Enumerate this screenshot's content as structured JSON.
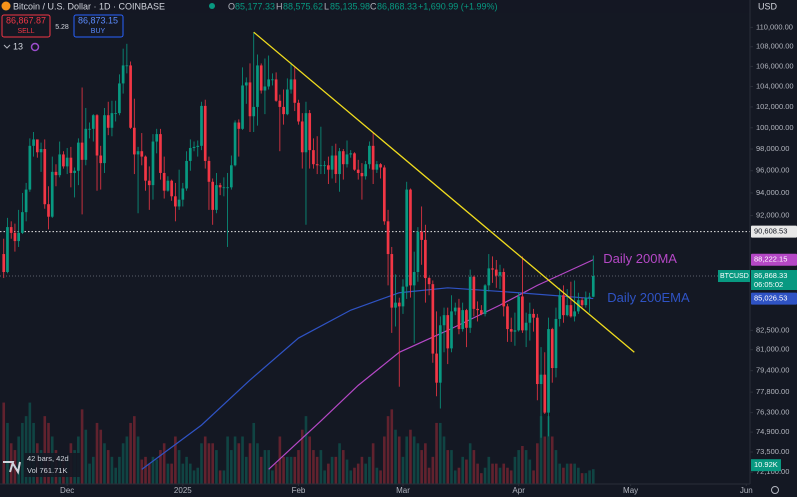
{
  "header": {
    "title": "Bitcoin / U.S. Dollar · 1D · COINBASE",
    "o_key": "O",
    "o": "85,177.33",
    "h_key": "H",
    "h": "88,575.62",
    "l_key": "L",
    "l": "85,135.98",
    "c_key": "C",
    "c": "86,868.33",
    "change": "+1,690.99 (+1.99%)",
    "sell_price": "86,867.87",
    "sell": "SELL",
    "spread": "5.28",
    "buy_price": "86,873.15",
    "buy": "BUY",
    "indicator_count": "13",
    "currency": "USD"
  },
  "chart_data": {
    "type": "candlestick",
    "symbol": "BTCUSD",
    "countdown": "06:05:02",
    "bars_info": "42 bars, 42d",
    "volume_info": "Vol 761.71K",
    "volume_last_label": "10.92K",
    "up_color": "#089981",
    "down_color": "#f23645",
    "log_y": true,
    "grid": false,
    "ylim": [
      71300,
      112900
    ],
    "yticks": [
      {
        "value": 110000,
        "label": "110,000.00"
      },
      {
        "value": 108000,
        "label": "108,000.00"
      },
      {
        "value": 106000,
        "label": "106,000.00"
      },
      {
        "value": 104000,
        "label": "104,000.00"
      },
      {
        "value": 102000,
        "label": "102,000.00"
      },
      {
        "value": 100000,
        "label": "100,000.00"
      },
      {
        "value": 98000,
        "label": "98,000.00"
      },
      {
        "value": 96000,
        "label": "96,000.00"
      },
      {
        "value": 94000,
        "label": "94,000.00"
      },
      {
        "value": 92000,
        "label": "92,000.00"
      },
      {
        "value": 82500,
        "label": "82,500.00"
      },
      {
        "value": 81000,
        "label": "81,000.00"
      },
      {
        "value": 79400,
        "label": "79,400.00"
      },
      {
        "value": 77800,
        "label": "77,800.00"
      },
      {
        "value": 76300,
        "label": "76,300.00"
      },
      {
        "value": 74900,
        "label": "74,900.00"
      },
      {
        "value": 73500,
        "label": "73,500.00"
      },
      {
        "value": 72100,
        "label": "72,100.00"
      }
    ],
    "xlim": [
      -18,
      183
    ],
    "xticks": [
      {
        "value": 0,
        "label": "Dec"
      },
      {
        "value": 31,
        "label": "2025"
      },
      {
        "value": 62,
        "label": "Feb"
      },
      {
        "value": 90,
        "label": "Mar"
      },
      {
        "value": 121,
        "label": "Apr"
      },
      {
        "value": 151,
        "label": "May"
      },
      {
        "value": 182,
        "label": "Jun"
      }
    ],
    "x": [
      -17,
      -16,
      -15,
      -14,
      -13,
      -12,
      -11,
      -10,
      -9,
      -8,
      -7,
      -6,
      -5,
      -4,
      -3,
      -2,
      -1,
      0,
      1,
      2,
      3,
      4,
      5,
      6,
      7,
      8,
      9,
      10,
      11,
      12,
      13,
      14,
      15,
      16,
      17,
      18,
      19,
      20,
      21,
      22,
      23,
      24,
      25,
      26,
      27,
      28,
      29,
      30,
      31,
      32,
      33,
      34,
      35,
      36,
      37,
      38,
      39,
      40,
      41,
      42,
      43,
      44,
      45,
      46,
      47,
      48,
      49,
      50,
      51,
      52,
      53,
      54,
      55,
      56,
      57,
      58,
      59,
      60,
      61,
      62,
      63,
      64,
      65,
      66,
      67,
      68,
      69,
      70,
      71,
      72,
      73,
      74,
      75,
      76,
      77,
      78,
      79,
      80,
      81,
      82,
      83,
      84,
      85,
      86,
      87,
      88,
      89,
      90,
      91,
      92,
      93,
      94,
      95,
      96,
      97,
      98,
      99,
      100,
      101,
      102,
      103,
      104,
      105,
      106,
      107,
      108,
      109,
      110,
      111,
      112,
      113,
      114,
      115,
      116,
      117,
      118,
      119,
      120,
      121,
      122,
      123,
      124,
      125,
      126,
      127,
      128,
      129,
      130,
      131,
      132,
      133,
      134,
      135,
      136,
      137,
      138,
      139,
      140,
      141
    ],
    "open": [
      88700,
      87200,
      91000,
      90500,
      89800,
      90500,
      92300,
      94300,
      98300,
      98900,
      97700,
      98000,
      93000,
      91900,
      95900,
      95600,
      97500,
      96400,
      97200,
      95800,
      96000,
      98600,
      97000,
      99900,
      99900,
      101200,
      97400,
      96700,
      101200,
      100000,
      101400,
      101400,
      104300,
      106100,
      106100,
      100000,
      97500,
      97800,
      97300,
      95100,
      94700,
      98700,
      99400,
      95800,
      94200,
      95100,
      93700,
      92800,
      93400,
      94400,
      96900,
      98100,
      98200,
      98300,
      102100,
      96900,
      95000,
      92500,
      94700,
      94500,
      94500,
      94500,
      96500,
      100500,
      99900,
      104100,
      104400,
      101100,
      102000,
      106100,
      103600,
      104000,
      104700,
      104700,
      102600,
      102000,
      101300,
      103700,
      104700,
      102400,
      100600,
      97700,
      101400,
      97900,
      96600,
      96500,
      96500,
      96500,
      96100,
      97400,
      95700,
      97800,
      96600,
      97500,
      97600,
      96100,
      95800,
      95500,
      96600,
      98300,
      96100,
      96600,
      96300,
      91500,
      88700,
      84300,
      84700,
      84400,
      86000,
      94300,
      86100,
      87200,
      90600,
      89900,
      86700,
      86200,
      80700,
      78500,
      82900,
      83700,
      81100,
      84000,
      84300,
      82600,
      84100,
      82700,
      86800,
      84200,
      84100,
      83800,
      86100,
      87500,
      87400,
      86900,
      87200,
      84400,
      82600,
      82400,
      82500,
      85200,
      82500,
      83100,
      83800,
      83500,
      78400,
      79100,
      76300,
      82600,
      79600,
      83400,
      85300,
      83700,
      84500,
      83600,
      84000,
      84900,
      84500,
      85100,
      85177.33
    ],
    "high": [
      90000,
      91800,
      91500,
      91300,
      92500,
      94000,
      94900,
      99000,
      99600,
      98700,
      98600,
      98900,
      94600,
      97300,
      96600,
      98700,
      97800,
      98100,
      98200,
      96300,
      99000,
      103900,
      101900,
      100500,
      101300,
      101300,
      98300,
      101900,
      102500,
      102600,
      102600,
      105200,
      107800,
      108300,
      106500,
      102800,
      98200,
      99500,
      97400,
      96400,
      99400,
      99900,
      99900,
      97300,
      95500,
      95200,
      94900,
      96100,
      94900,
      97800,
      98900,
      98700,
      98800,
      102500,
      102700,
      97300,
      95300,
      95800,
      94900,
      95400,
      95800,
      97400,
      100700,
      100800,
      105900,
      104900,
      106300,
      109500,
      107200,
      106300,
      106800,
      107100,
      105300,
      105400,
      103200,
      103700,
      104800,
      106400,
      106000,
      102700,
      101400,
      102500,
      101700,
      99000,
      99200,
      100100,
      96900,
      97300,
      98300,
      98500,
      98100,
      98000,
      98800,
      97900,
      97700,
      97000,
      96700,
      96900,
      98700,
      99500,
      96900,
      96700,
      96500,
      92500,
      89300,
      87000,
      85100,
      86600,
      95000,
      94400,
      88900,
      91000,
      92800,
      91200,
      86800,
      86500,
      84000,
      83600,
      84300,
      84300,
      85300,
      84700,
      85000,
      84700,
      84200,
      87400,
      86900,
      84800,
      84500,
      86200,
      88700,
      88500,
      88200,
      87800,
      87500,
      84600,
      83500,
      83900,
      85500,
      88500,
      83900,
      84700,
      84200,
      83800,
      81200,
      80800,
      83500,
      82700,
      84300,
      85900,
      86100,
      85800,
      86400,
      86500,
      85500,
      85100,
      85600,
      85500,
      88575.62
    ],
    "low": [
      86700,
      87100,
      90000,
      88900,
      89300,
      90400,
      91500,
      94100,
      97300,
      97200,
      95900,
      92600,
      90800,
      91800,
      94600,
      95400,
      96200,
      95700,
      94500,
      93600,
      94700,
      92100,
      96500,
      99000,
      98700,
      94200,
      94300,
      95800,
      99300,
      99200,
      100600,
      101200,
      103300,
      105300,
      99900,
      95700,
      92200,
      96500,
      94200,
      92500,
      93400,
      97600,
      95200,
      93500,
      94100,
      93300,
      91500,
      92500,
      92800,
      94200,
      96000,
      97800,
      97300,
      97900,
      96200,
      92500,
      91200,
      92200,
      93800,
      93700,
      89300,
      94300,
      96400,
      97300,
      99800,
      102300,
      99600,
      99600,
      100200,
      103300,
      101300,
      103700,
      104100,
      102500,
      97800,
      100300,
      101200,
      103300,
      101600,
      100300,
      96200,
      91200,
      96200,
      96200,
      95700,
      95700,
      95700,
      94800,
      95300,
      94900,
      94100,
      95200,
      96300,
      97200,
      96000,
      95200,
      93400,
      95200,
      96200,
      94800,
      95800,
      95300,
      91200,
      86100,
      82300,
      82800,
      78200,
      83800,
      85000,
      85100,
      81500,
      86400,
      87800,
      84700,
      85300,
      80000,
      77500,
      76600,
      80800,
      79900,
      80800,
      83700,
      82200,
      82400,
      81200,
      82300,
      83600,
      83200,
      83700,
      83600,
      85600,
      86300,
      85900,
      85800,
      83600,
      81600,
      81600,
      81300,
      82400,
      82300,
      81200,
      81700,
      82400,
      77200,
      74500,
      76200,
      74600,
      78500,
      78900,
      82800,
      83100,
      83600,
      83500,
      83200,
      83800,
      84300,
      84300,
      83900,
      85135.98
    ],
    "close": [
      87200,
      91000,
      90500,
      89800,
      90500,
      92300,
      94300,
      98300,
      98900,
      97700,
      98000,
      93000,
      91900,
      95900,
      95600,
      97500,
      96400,
      97200,
      95800,
      96000,
      98600,
      97000,
      99900,
      99900,
      101200,
      97400,
      96700,
      101200,
      100000,
      101400,
      101400,
      104300,
      106100,
      106100,
      100000,
      97500,
      97800,
      97300,
      95100,
      94700,
      98700,
      99400,
      95800,
      94200,
      95100,
      93700,
      92800,
      93400,
      94400,
      96900,
      98100,
      98200,
      98300,
      102100,
      96900,
      95000,
      92500,
      94700,
      94500,
      94500,
      94500,
      96500,
      100500,
      99900,
      104100,
      104400,
      101100,
      102000,
      106100,
      103600,
      104000,
      104700,
      104700,
      102600,
      102000,
      101300,
      103700,
      104700,
      102400,
      100600,
      97700,
      101400,
      97900,
      96600,
      96500,
      96500,
      96500,
      96100,
      97400,
      95700,
      97800,
      96600,
      97500,
      97600,
      96100,
      95800,
      95500,
      96600,
      98300,
      96100,
      96600,
      96300,
      91500,
      88700,
      84300,
      84700,
      84400,
      86000,
      94300,
      86100,
      87200,
      90600,
      89900,
      86700,
      86200,
      80700,
      78500,
      82900,
      83700,
      81100,
      84000,
      84300,
      82600,
      84100,
      82700,
      86800,
      84200,
      84100,
      83800,
      86100,
      87500,
      87400,
      86900,
      87200,
      84400,
      82600,
      82400,
      82500,
      85200,
      82500,
      83100,
      83800,
      83500,
      78400,
      79100,
      76300,
      82600,
      79600,
      83400,
      85300,
      83700,
      84500,
      83600,
      84000,
      84900,
      84500,
      85100,
      85177.33,
      86868.33
    ],
    "volume_lim": [
      0,
      70000
    ],
    "volume": [
      60000,
      45000,
      30000,
      25000,
      35000,
      45000,
      50000,
      60000,
      45000,
      30000,
      25000,
      50000,
      45000,
      35000,
      25000,
      20000,
      18000,
      20000,
      30000,
      25000,
      35000,
      55000,
      40000,
      15000,
      20000,
      45000,
      40000,
      30000,
      25000,
      20000,
      12000,
      20000,
      30000,
      35000,
      45000,
      50000,
      35000,
      18000,
      20000,
      15000,
      20000,
      18000,
      25000,
      30000,
      15000,
      15000,
      35000,
      25000,
      15000,
      20000,
      15000,
      10000,
      12000,
      30000,
      35000,
      30000,
      30000,
      25000,
      10000,
      10000,
      35000,
      25000,
      35000,
      30000,
      35000,
      20000,
      30000,
      45000,
      30000,
      20000,
      25000,
      25000,
      10000,
      15000,
      35000,
      20000,
      20000,
      20000,
      20000,
      25000,
      40000,
      50000,
      35000,
      25000,
      20000,
      25000,
      10000,
      15000,
      20000,
      20000,
      30000,
      25000,
      18000,
      10000,
      12000,
      15000,
      20000,
      15000,
      20000,
      30000,
      12000,
      10000,
      35000,
      50000,
      55000,
      40000,
      35000,
      20000,
      35000,
      40000,
      35000,
      30000,
      25000,
      30000,
      12000,
      20000,
      45000,
      45000,
      35000,
      25000,
      25000,
      10000,
      12000,
      20000,
      18000,
      30000,
      25000,
      15000,
      8000,
      12000,
      20000,
      15000,
      15000,
      12000,
      15000,
      12000,
      10000,
      20000,
      25000,
      28000,
      25000,
      18000,
      10000,
      30000,
      50000,
      35000,
      50000,
      35000,
      25000,
      15000,
      12000,
      15000,
      15000,
      15000,
      12000,
      8000,
      8000,
      10000,
      10920
    ],
    "indicators": [
      {
        "name": "Daily 200MA",
        "color": "#b548c6",
        "last_label": "88,222.15",
        "x": [
          54,
          68,
          78,
          89,
          102,
          116,
          126,
          141
        ],
        "values": [
          72300,
          75700,
          78300,
          80800,
          82500,
          84500,
          86100,
          88222.15
        ]
      },
      {
        "name": "Daily 200EMA",
        "color": "#2f53c4",
        "last_label": "85,026.53",
        "x": [
          20,
          36,
          49,
          62,
          76,
          89,
          102,
          121,
          141
        ],
        "values": [
          72300,
          75400,
          78700,
          81900,
          84100,
          85500,
          85900,
          85500,
          85026.53
        ]
      }
    ],
    "trendline": {
      "color": "#f0dc1e",
      "x": [
        50,
        152
      ],
      "values": [
        109500,
        80800
      ]
    },
    "hline": {
      "value": 90608.53,
      "label": "90,608.53",
      "color": "#e8e8e8"
    }
  }
}
